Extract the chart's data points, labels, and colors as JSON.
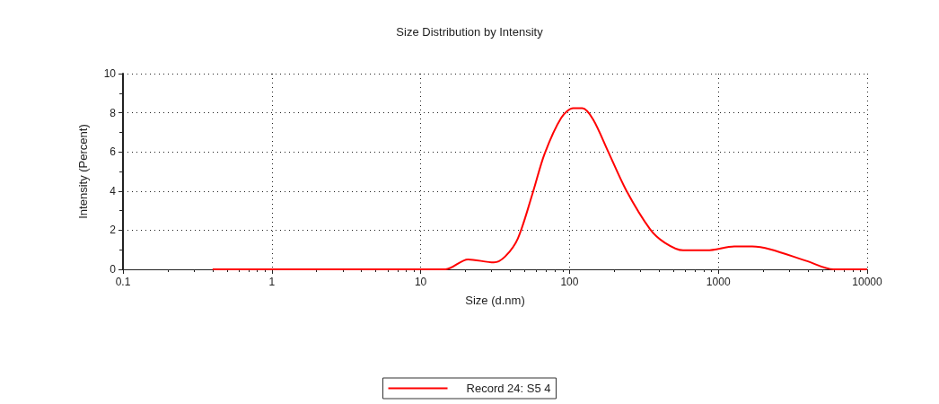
{
  "chart_data": {
    "type": "line",
    "title": "Size Distribution by Intensity",
    "xlabel": "Size (d.nm)",
    "ylabel": "Intensity (Percent)",
    "log": "x",
    "xlim": [
      0.1,
      10000
    ],
    "xticks": [
      0.1,
      1,
      10,
      100,
      1000,
      10000
    ],
    "ylim": [
      0,
      10
    ],
    "yticks": [
      0,
      2,
      4,
      6,
      8,
      10
    ],
    "grid": true,
    "legend": "bottom",
    "marker": "none",
    "line_style": "solid",
    "series": [
      {
        "name": "Record 24: S5 4",
        "color": "#ff0000",
        "x": [
          0.4,
          1,
          5,
          10,
          14.7,
          20.8,
          31,
          37,
          45,
          56.6,
          68,
          88,
          106,
          122,
          144,
          181,
          240,
          348,
          439,
          580,
          841,
          1279,
          1690,
          2237,
          3910,
          5940,
          10000
        ],
        "values": [
          0,
          0,
          0,
          0,
          0,
          0.51,
          0.35,
          0.66,
          1.58,
          3.9,
          5.9,
          7.74,
          8.23,
          8.23,
          7.66,
          6.05,
          4.05,
          2.05,
          1.35,
          0.97,
          0.97,
          1.17,
          1.17,
          1.02,
          0.43,
          0,
          0
        ]
      }
    ]
  }
}
